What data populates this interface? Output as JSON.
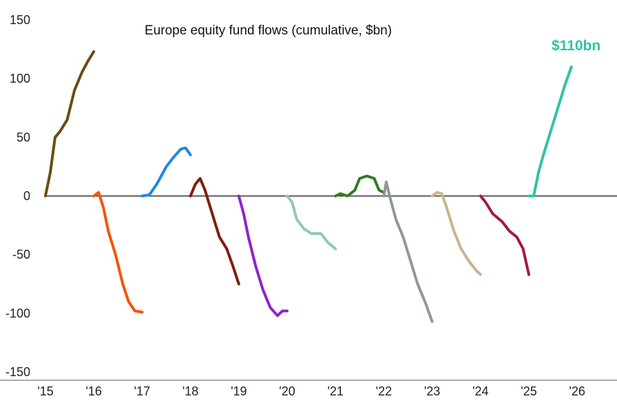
{
  "chart_data": {
    "type": "line",
    "title": "Europe equity fund flows (cumulative, $bn)",
    "xlabel": "",
    "ylabel": "",
    "ylim": [
      -150,
      150
    ],
    "xlim": [
      2015,
      2026.9
    ],
    "grid": false,
    "legend": "none",
    "y_ticks": [
      "150",
      "100",
      "50",
      "0",
      "-50",
      "-100",
      "-150"
    ],
    "x_ticks": [
      "'15",
      "'16",
      "'17",
      "'18",
      "'19",
      "'20",
      "'21",
      "'22",
      "'23",
      "'24",
      "'25",
      "'26"
    ],
    "annotation": {
      "text": "$110bn",
      "color": "#2ec4a5"
    },
    "series": [
      {
        "year": "2015",
        "color": "#6b4c11",
        "points": [
          [
            2015.0,
            0
          ],
          [
            2015.1,
            20
          ],
          [
            2015.2,
            50
          ],
          [
            2015.3,
            55
          ],
          [
            2015.45,
            65
          ],
          [
            2015.6,
            90
          ],
          [
            2015.75,
            105
          ],
          [
            2015.88,
            115
          ],
          [
            2016.0,
            123
          ]
        ]
      },
      {
        "year": "2016",
        "color": "#f2540b",
        "points": [
          [
            2016.0,
            0
          ],
          [
            2016.1,
            3
          ],
          [
            2016.2,
            -10
          ],
          [
            2016.3,
            -30
          ],
          [
            2016.45,
            -50
          ],
          [
            2016.6,
            -75
          ],
          [
            2016.72,
            -90
          ],
          [
            2016.85,
            -98
          ],
          [
            2017.0,
            -99
          ]
        ]
      },
      {
        "year": "2017",
        "color": "#1e88e5",
        "points": [
          [
            2017.0,
            0
          ],
          [
            2017.15,
            1
          ],
          [
            2017.3,
            10
          ],
          [
            2017.5,
            25
          ],
          [
            2017.65,
            33
          ],
          [
            2017.8,
            40
          ],
          [
            2017.9,
            41
          ],
          [
            2018.0,
            35
          ]
        ]
      },
      {
        "year": "2018",
        "color": "#7d1f0f",
        "points": [
          [
            2018.0,
            0
          ],
          [
            2018.1,
            10
          ],
          [
            2018.2,
            15
          ],
          [
            2018.3,
            5
          ],
          [
            2018.45,
            -15
          ],
          [
            2018.6,
            -35
          ],
          [
            2018.75,
            -45
          ],
          [
            2018.88,
            -60
          ],
          [
            2019.0,
            -75
          ]
        ]
      },
      {
        "year": "2019",
        "color": "#8e24c9",
        "points": [
          [
            2019.0,
            0
          ],
          [
            2019.1,
            -15
          ],
          [
            2019.2,
            -35
          ],
          [
            2019.35,
            -60
          ],
          [
            2019.5,
            -80
          ],
          [
            2019.65,
            -95
          ],
          [
            2019.8,
            -102
          ],
          [
            2019.9,
            -98
          ],
          [
            2020.0,
            -98
          ]
        ]
      },
      {
        "year": "2020",
        "color": "#8ecbb0",
        "points": [
          [
            2020.0,
            0
          ],
          [
            2020.1,
            -5
          ],
          [
            2020.2,
            -20
          ],
          [
            2020.35,
            -28
          ],
          [
            2020.5,
            -32
          ],
          [
            2020.7,
            -32
          ],
          [
            2020.85,
            -40
          ],
          [
            2021.0,
            -45
          ]
        ]
      },
      {
        "year": "2021",
        "color": "#2e7d20",
        "points": [
          [
            2021.0,
            0
          ],
          [
            2021.1,
            2
          ],
          [
            2021.25,
            0
          ],
          [
            2021.4,
            5
          ],
          [
            2021.5,
            15
          ],
          [
            2021.65,
            17
          ],
          [
            2021.8,
            15
          ],
          [
            2021.9,
            5
          ],
          [
            2022.0,
            3
          ]
        ]
      },
      {
        "year": "2022",
        "color": "#909994",
        "points": [
          [
            2022.0,
            0
          ],
          [
            2022.05,
            12
          ],
          [
            2022.12,
            0
          ],
          [
            2022.25,
            -20
          ],
          [
            2022.4,
            -35
          ],
          [
            2022.55,
            -55
          ],
          [
            2022.7,
            -75
          ],
          [
            2022.85,
            -90
          ],
          [
            2023.0,
            -107
          ]
        ]
      },
      {
        "year": "2023",
        "color": "#c9b48e",
        "points": [
          [
            2023.0,
            0
          ],
          [
            2023.1,
            3
          ],
          [
            2023.2,
            2
          ],
          [
            2023.3,
            -10
          ],
          [
            2023.45,
            -30
          ],
          [
            2023.6,
            -45
          ],
          [
            2023.75,
            -55
          ],
          [
            2023.9,
            -63
          ],
          [
            2024.0,
            -67
          ]
        ]
      },
      {
        "year": "2024",
        "color": "#a31c3c",
        "points": [
          [
            2024.0,
            0
          ],
          [
            2024.1,
            -5
          ],
          [
            2024.25,
            -15
          ],
          [
            2024.45,
            -22
          ],
          [
            2024.6,
            -30
          ],
          [
            2024.75,
            -35
          ],
          [
            2024.88,
            -45
          ],
          [
            2025.0,
            -67
          ]
        ]
      },
      {
        "year": "2025",
        "color": "#2ec4a5",
        "points": [
          [
            2025.0,
            0
          ],
          [
            2025.1,
            0
          ],
          [
            2025.2,
            20
          ],
          [
            2025.3,
            35
          ],
          [
            2025.45,
            55
          ],
          [
            2025.6,
            75
          ],
          [
            2025.75,
            95
          ],
          [
            2025.88,
            110
          ]
        ]
      }
    ]
  }
}
